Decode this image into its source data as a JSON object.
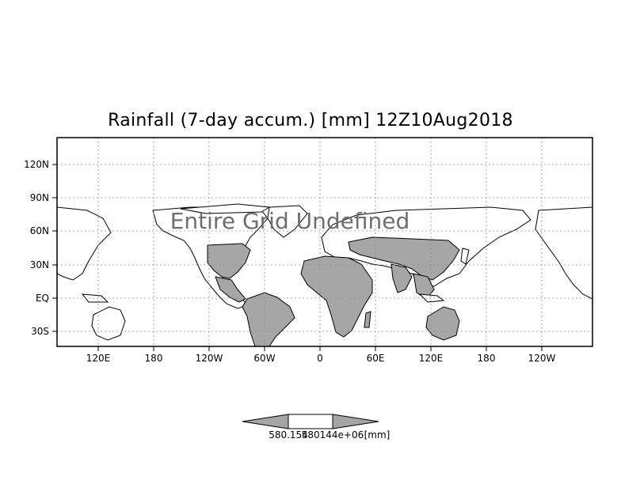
{
  "title": "Rainfall (7-day accum.) [mm] 12Z10Aug2018",
  "watermark": "Entire Grid Undefined",
  "map": {
    "projection": "cylindrical lat/lon",
    "grid": true,
    "land_fill_color": "#a6a6a6",
    "ocean_color": "#ffffff",
    "lat_ticks": [
      "120N",
      "90N",
      "60N",
      "30N",
      "EQ",
      "30S"
    ],
    "lon_ticks": [
      "120E",
      "180",
      "120W",
      "60W",
      "0",
      "60E",
      "120E",
      "180",
      "120W"
    ]
  },
  "colorbar": {
    "fill_color": "#a6a6a6",
    "mid_color": "#ffffff",
    "labels": [
      "580.154",
      "580144e+06",
      "[mm]"
    ]
  }
}
